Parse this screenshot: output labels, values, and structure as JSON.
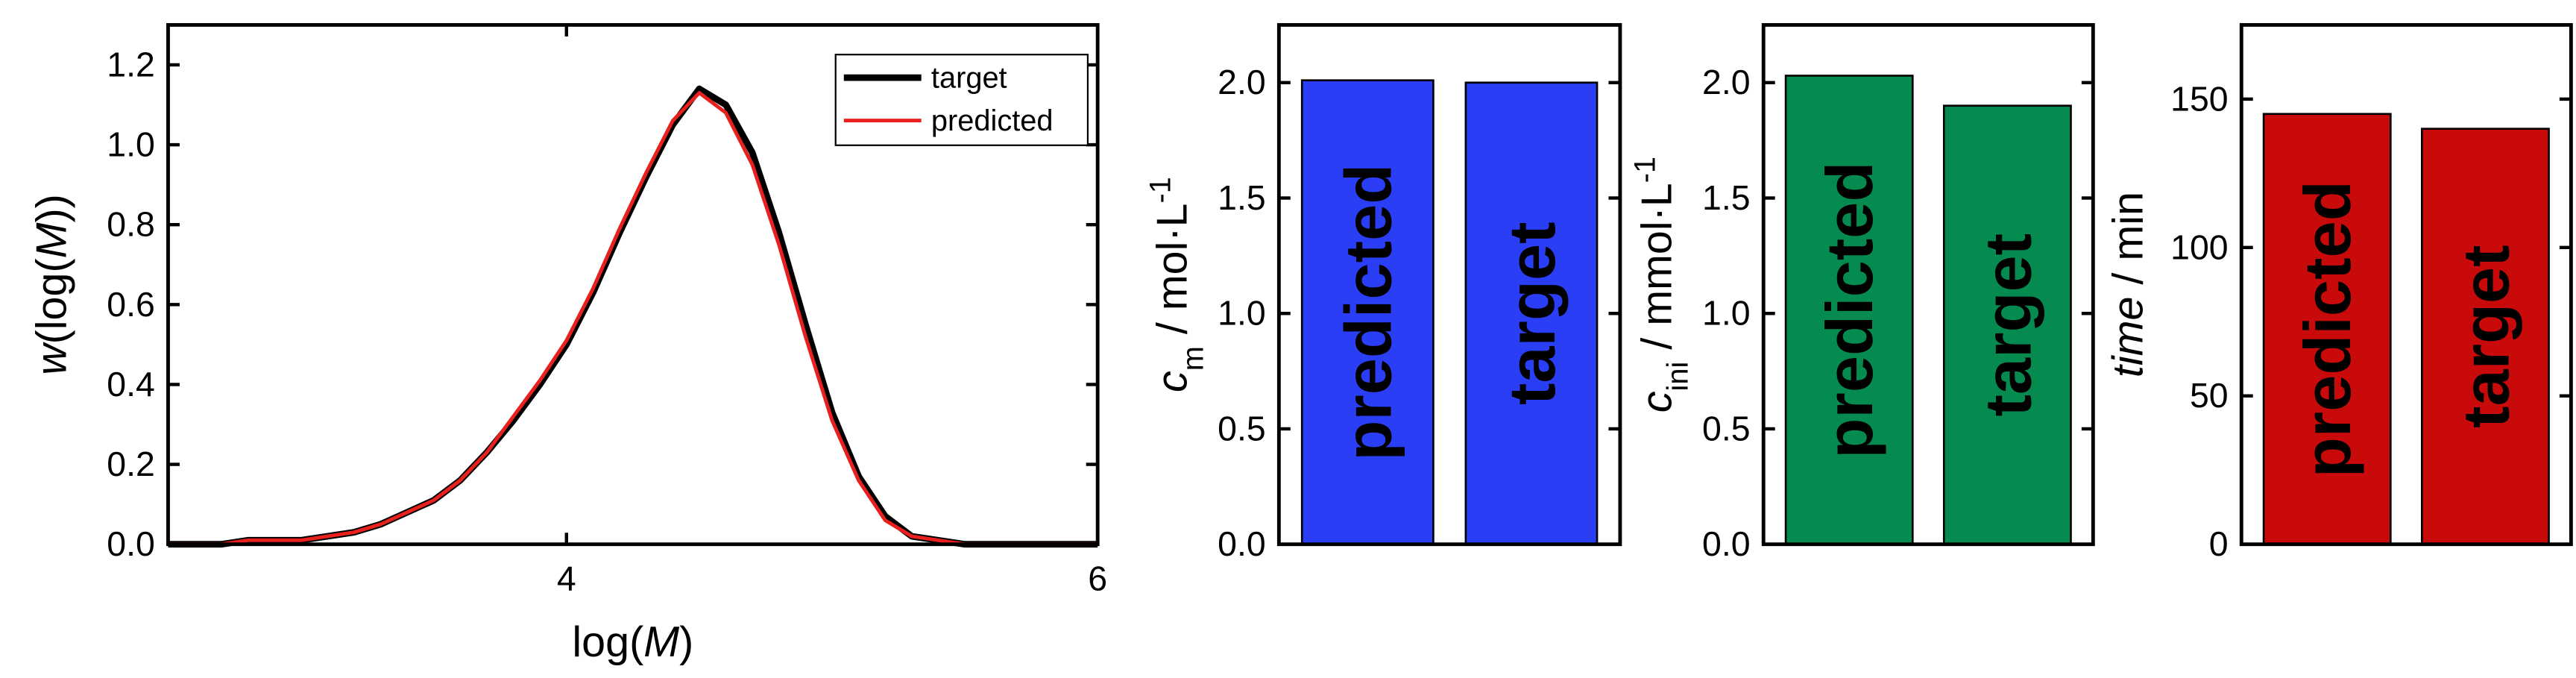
{
  "chart_data": [
    {
      "type": "line",
      "xlabel": [
        {
          "text": "log(",
          "style": "normal"
        },
        {
          "text": "M",
          "style": "italic"
        },
        {
          "text": ")",
          "style": "normal"
        }
      ],
      "ylabel": [
        {
          "text": "w",
          "style": "italic"
        },
        {
          "text": "(log(",
          "style": "normal"
        },
        {
          "text": "M",
          "style": "italic"
        },
        {
          "text": "))",
          "style": "normal"
        }
      ],
      "x": [
        2.5,
        2.6,
        2.7,
        2.8,
        2.9,
        3.0,
        3.1,
        3.2,
        3.3,
        3.4,
        3.5,
        3.6,
        3.7,
        3.8,
        3.9,
        4.0,
        4.1,
        4.2,
        4.3,
        4.4,
        4.5,
        4.6,
        4.7,
        4.8,
        4.9,
        5.0,
        5.1,
        5.2,
        5.3,
        5.4,
        5.5,
        5.6,
        5.7,
        5.8,
        5.9,
        6.0
      ],
      "series": [
        {
          "name": "target",
          "color": "#000000",
          "values": [
            0.0,
            0.0,
            0.0,
            0.01,
            0.01,
            0.01,
            0.02,
            0.03,
            0.05,
            0.08,
            0.11,
            0.16,
            0.23,
            0.31,
            0.4,
            0.5,
            0.63,
            0.78,
            0.92,
            1.05,
            1.14,
            1.1,
            0.98,
            0.78,
            0.55,
            0.33,
            0.17,
            0.07,
            0.02,
            0.01,
            0.0,
            0.0,
            0.0,
            0.0,
            0.0,
            0.0
          ]
        },
        {
          "name": "predicted",
          "color": "#e8211f",
          "values": [
            0.0,
            0.0,
            0.0,
            0.01,
            0.01,
            0.01,
            0.02,
            0.03,
            0.05,
            0.08,
            0.11,
            0.16,
            0.23,
            0.32,
            0.41,
            0.51,
            0.64,
            0.79,
            0.93,
            1.06,
            1.13,
            1.08,
            0.95,
            0.75,
            0.52,
            0.31,
            0.16,
            0.06,
            0.02,
            0.01,
            0.0,
            0.0,
            0.0,
            0.0,
            0.0,
            0.0
          ]
        }
      ],
      "xlim": [
        2.5,
        6
      ],
      "xticks": [
        4,
        6
      ],
      "ylim": [
        0,
        1.3
      ],
      "yticks": [
        {
          "value": 0,
          "label": "0.0"
        },
        {
          "value": 0.2,
          "label": "0.2"
        },
        {
          "value": 0.4,
          "label": "0.4"
        },
        {
          "value": 0.6,
          "label": "0.6"
        },
        {
          "value": 0.8,
          "label": "0.8"
        },
        {
          "value": 1.0,
          "label": "1.0"
        },
        {
          "value": 1.2,
          "label": "1.2"
        }
      ],
      "legend": "upper right"
    },
    {
      "type": "bar",
      "ylabel": [
        {
          "text": "c",
          "style": "italic"
        },
        {
          "text": "m",
          "style": "sub"
        },
        {
          "text": " / mol·L",
          "style": "normal"
        },
        {
          "text": "-1",
          "style": "sup"
        }
      ],
      "categories": [
        "predicted",
        "target"
      ],
      "values": [
        2.01,
        2.0
      ],
      "color": "#2a3ff5",
      "ylim": [
        0,
        2.25
      ],
      "yticks": [
        {
          "value": 0,
          "label": "0.0"
        },
        {
          "value": 0.5,
          "label": "0.5"
        },
        {
          "value": 1.0,
          "label": "1.0"
        },
        {
          "value": 1.5,
          "label": "1.5"
        },
        {
          "value": 2.0,
          "label": "2.0"
        }
      ]
    },
    {
      "type": "bar",
      "ylabel": [
        {
          "text": "c",
          "style": "italic"
        },
        {
          "text": "ini",
          "style": "sub"
        },
        {
          "text": " / mmol·L",
          "style": "normal"
        },
        {
          "text": "-1",
          "style": "sup"
        }
      ],
      "categories": [
        "predicted",
        "target"
      ],
      "values": [
        2.03,
        1.9
      ],
      "color": "#058a4f",
      "ylim": [
        0,
        2.25
      ],
      "yticks": [
        {
          "value": 0,
          "label": "0.0"
        },
        {
          "value": 0.5,
          "label": "0.5"
        },
        {
          "value": 1.0,
          "label": "1.0"
        },
        {
          "value": 1.5,
          "label": "1.5"
        },
        {
          "value": 2.0,
          "label": "2.0"
        }
      ]
    },
    {
      "type": "bar",
      "ylabel": [
        {
          "text": "time",
          "style": "italic"
        },
        {
          "text": " / min",
          "style": "normal"
        }
      ],
      "categories": [
        "predicted",
        "target"
      ],
      "values": [
        145,
        140
      ],
      "color": "#c80a0a",
      "ylim": [
        0,
        175
      ],
      "yticks": [
        0,
        50,
        100,
        150
      ]
    }
  ]
}
